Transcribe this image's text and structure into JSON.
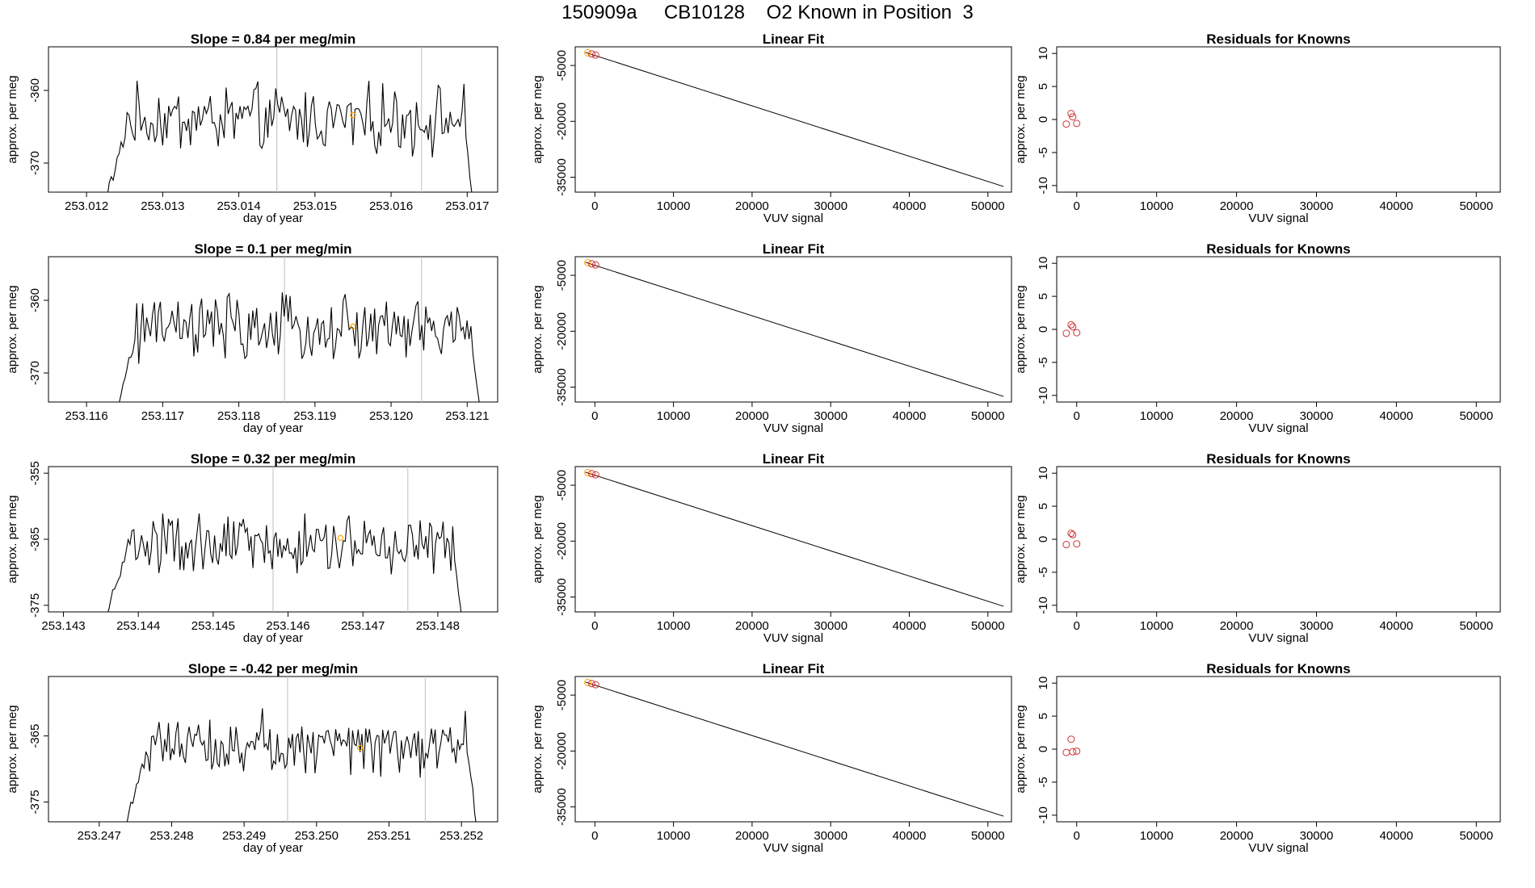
{
  "page": {
    "title": "150909a     CB10128    O2 Known in Position  3"
  },
  "colors": {
    "line": "#000000",
    "gridline": "#bebebe",
    "known_marker": "#ffa500",
    "residual_marker": "#cd3333"
  },
  "chart_data": [
    {
      "type": "line",
      "title": "Slope =  0.84  per meg/min",
      "xlabel": "day of year",
      "ylabel": "approx. per meg",
      "xlim": [
        253.0115,
        253.0174
      ],
      "ylim": [
        -374,
        -354
      ],
      "xticks": [
        "253.012",
        "253.013",
        "253.014",
        "253.015",
        "253.016",
        "253.017"
      ],
      "yticks": [
        "-370",
        "-360"
      ],
      "vlines": [
        253.0145,
        253.0164
      ],
      "highlight": {
        "x": 253.0155,
        "y": -363.4
      },
      "start": 253.01222,
      "end": 253.01714,
      "n": 190,
      "base": -364,
      "marker_flag": "tiny orange circle"
    },
    {
      "type": "line",
      "title": "Linear Fit",
      "xlabel": "VUV signal",
      "ylabel": "approx. per meg",
      "xlim": [
        -2500,
        53000
      ],
      "ylim": [
        -39000,
        0
      ],
      "xticks": [
        "0",
        "10000",
        "20000",
        "30000",
        "40000",
        "50000"
      ],
      "yticks": [
        "-35000",
        "-20000",
        "-5000"
      ],
      "line": [
        [
          -1200,
          -1500
        ],
        [
          52000,
          -37500
        ]
      ],
      "points": [
        [
          -900,
          -1600
        ],
        [
          -400,
          -1900
        ],
        [
          100,
          -2200
        ]
      ]
    },
    {
      "type": "scatter",
      "title": "Residuals for Knowns",
      "xlabel": "VUV signal",
      "ylabel": "approx. per meg",
      "xlim": [
        -2500,
        53000
      ],
      "ylim": [
        -11,
        11
      ],
      "xticks": [
        "0",
        "10000",
        "20000",
        "30000",
        "40000",
        "50000"
      ],
      "yticks": [
        "-10",
        "-5",
        "0",
        "5",
        "10"
      ],
      "points": [
        [
          -1300,
          -0.7
        ],
        [
          -700,
          0.9
        ],
        [
          -500,
          0.4
        ],
        [
          0,
          -0.6
        ]
      ]
    },
    {
      "type": "line",
      "title": "Slope =  0.1  per meg/min",
      "xlabel": "day of year",
      "ylabel": "approx. per meg",
      "xlim": [
        253.1155,
        253.1214
      ],
      "ylim": [
        -374,
        -354
      ],
      "xticks": [
        "253.116",
        "253.117",
        "253.118",
        "253.119",
        "253.120",
        "253.121"
      ],
      "yticks": [
        "-370",
        "-360"
      ],
      "vlines": [
        253.1186,
        253.1204
      ],
      "highlight": {
        "x": 253.1195,
        "y": -363.6
      },
      "start": 253.11635,
      "end": 253.12123,
      "n": 190,
      "base": -364
    },
    {
      "type": "line",
      "title": "Linear Fit",
      "xlabel": "VUV signal",
      "ylabel": "approx. per meg",
      "xlim": [
        -2500,
        53000
      ],
      "ylim": [
        -39000,
        0
      ],
      "xticks": [
        "0",
        "10000",
        "20000",
        "30000",
        "40000",
        "50000"
      ],
      "yticks": [
        "-35000",
        "-20000",
        "-5000"
      ],
      "line": [
        [
          -1200,
          -1500
        ],
        [
          52000,
          -37500
        ]
      ],
      "points": [
        [
          -900,
          -1600
        ],
        [
          -400,
          -1900
        ],
        [
          100,
          -2200
        ]
      ]
    },
    {
      "type": "scatter",
      "title": "Residuals for Knowns",
      "xlabel": "VUV signal",
      "ylabel": "approx. per meg",
      "xlim": [
        -2500,
        53000
      ],
      "ylim": [
        -11,
        11
      ],
      "xticks": [
        "0",
        "10000",
        "20000",
        "30000",
        "40000",
        "50000"
      ],
      "yticks": [
        "-10",
        "-5",
        "0",
        "5",
        "10"
      ],
      "points": [
        [
          -1300,
          -0.6
        ],
        [
          -700,
          0.7
        ],
        [
          -500,
          0.4
        ],
        [
          0,
          -0.5
        ]
      ]
    },
    {
      "type": "line",
      "title": "Slope =  0.32  per meg/min",
      "xlabel": "day of year",
      "ylabel": "approx. per meg",
      "xlim": [
        253.1428,
        253.1488
      ],
      "ylim": [
        -376,
        -354
      ],
      "xticks": [
        "253.143",
        "253.144",
        "253.145",
        "253.146",
        "253.147",
        "253.148"
      ],
      "yticks": [
        "-375",
        "-365",
        "-355"
      ],
      "vlines": [
        253.1458,
        253.1476
      ],
      "highlight": {
        "x": 253.1467,
        "y": -364.8
      },
      "start": 253.14353,
      "end": 253.14838,
      "n": 190,
      "base": -366
    },
    {
      "type": "line",
      "title": "Linear Fit",
      "xlabel": "VUV signal",
      "ylabel": "approx. per meg",
      "xlim": [
        -2500,
        53000
      ],
      "ylim": [
        -39000,
        0
      ],
      "xticks": [
        "0",
        "10000",
        "20000",
        "30000",
        "40000",
        "50000"
      ],
      "yticks": [
        "-35000",
        "-20000",
        "-5000"
      ],
      "line": [
        [
          -1200,
          -1500
        ],
        [
          52000,
          -37500
        ]
      ],
      "points": [
        [
          -900,
          -1600
        ],
        [
          -400,
          -1900
        ],
        [
          100,
          -2200
        ]
      ]
    },
    {
      "type": "scatter",
      "title": "Residuals for Knowns",
      "xlabel": "VUV signal",
      "ylabel": "approx. per meg",
      "xlim": [
        -2500,
        53000
      ],
      "ylim": [
        -11,
        11
      ],
      "xticks": [
        "0",
        "10000",
        "20000",
        "30000",
        "40000",
        "50000"
      ],
      "yticks": [
        "-10",
        "-5",
        "0",
        "5",
        "10"
      ],
      "points": [
        [
          -1300,
          -0.8
        ],
        [
          -700,
          0.9
        ],
        [
          -500,
          0.7
        ],
        [
          0,
          -0.7
        ]
      ]
    },
    {
      "type": "line",
      "title": "Slope =  -0.42  per meg/min",
      "xlabel": "day of year",
      "ylabel": "approx. per meg",
      "xlim": [
        253.2463,
        253.2525
      ],
      "ylim": [
        -378,
        -356
      ],
      "xticks": [
        "253.247",
        "253.248",
        "253.249",
        "253.250",
        "253.251",
        "253.252"
      ],
      "yticks": [
        "-375",
        "-365"
      ],
      "vlines": [
        253.2496,
        253.2515
      ],
      "highlight": {
        "x": 253.2506,
        "y": -366.8
      },
      "start": 253.24736,
      "end": 253.25226,
      "n": 190,
      "base": -366
    },
    {
      "type": "line",
      "title": "Linear Fit",
      "xlabel": "VUV signal",
      "ylabel": "approx. per meg",
      "xlim": [
        -2500,
        53000
      ],
      "ylim": [
        -39000,
        0
      ],
      "xticks": [
        "0",
        "10000",
        "20000",
        "30000",
        "40000",
        "50000"
      ],
      "yticks": [
        "-35000",
        "-20000",
        "-5000"
      ],
      "line": [
        [
          -1200,
          -1500
        ],
        [
          52000,
          -37500
        ]
      ],
      "points": [
        [
          -900,
          -1600
        ],
        [
          -400,
          -1900
        ],
        [
          100,
          -2200
        ]
      ]
    },
    {
      "type": "scatter",
      "title": "Residuals for Knowns",
      "xlabel": "VUV signal",
      "ylabel": "approx. per meg",
      "xlim": [
        -2500,
        53000
      ],
      "ylim": [
        -11,
        11
      ],
      "xticks": [
        "0",
        "10000",
        "20000",
        "30000",
        "40000",
        "50000"
      ],
      "yticks": [
        "-10",
        "-5",
        "0",
        "5",
        "10"
      ],
      "points": [
        [
          -1300,
          -0.5
        ],
        [
          -700,
          1.5
        ],
        [
          -500,
          -0.4
        ],
        [
          0,
          -0.3
        ]
      ]
    }
  ]
}
